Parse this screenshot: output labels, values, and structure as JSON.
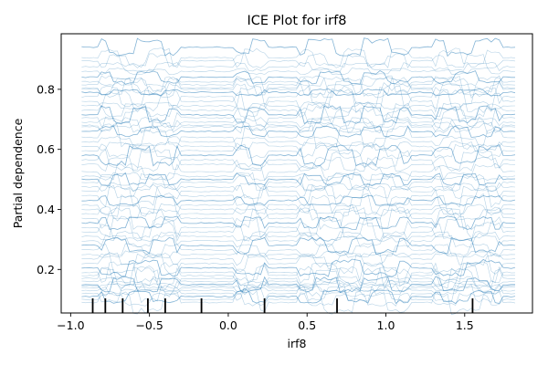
{
  "chart_data": {
    "type": "line",
    "title": "ICE Plot for irf8",
    "xlabel": "irf8",
    "ylabel": "Partial dependence",
    "xlim": [
      -1.06,
      1.93
    ],
    "ylim": [
      0.055,
      0.985
    ],
    "x_ticks": [
      -1.0,
      -0.5,
      0.0,
      0.5,
      1.0,
      1.5
    ],
    "x_tick_labels": [
      "−1.0",
      "−0.5",
      "0.0",
      "0.5",
      "1.0",
      "1.5"
    ],
    "y_ticks": [
      0.2,
      0.4,
      0.6,
      0.8
    ],
    "y_tick_labels": [
      "0.2",
      "0.4",
      "0.6",
      "0.8"
    ],
    "x_range": [
      -0.93,
      1.82
    ],
    "rug_positions": [
      -0.86,
      -0.78,
      -0.67,
      -0.51,
      -0.4,
      -0.17,
      0.23,
      0.69,
      1.55
    ],
    "line_levels": [
      0.94,
      0.905,
      0.895,
      0.875,
      0.86,
      0.84,
      0.825,
      0.815,
      0.805,
      0.8,
      0.79,
      0.775,
      0.76,
      0.745,
      0.73,
      0.715,
      0.705,
      0.69,
      0.68,
      0.675,
      0.66,
      0.64,
      0.625,
      0.61,
      0.595,
      0.58,
      0.565,
      0.55,
      0.525,
      0.51,
      0.5,
      0.49,
      0.475,
      0.46,
      0.445,
      0.43,
      0.415,
      0.4,
      0.385,
      0.37,
      0.355,
      0.34,
      0.325,
      0.31,
      0.295,
      0.28,
      0.265,
      0.25,
      0.235,
      0.22,
      0.205,
      0.19,
      0.18,
      0.17,
      0.16,
      0.15,
      0.145,
      0.14,
      0.13,
      0.12,
      0.11,
      0.1,
      0.09
    ],
    "grid": false,
    "color": "#1f77b4"
  }
}
